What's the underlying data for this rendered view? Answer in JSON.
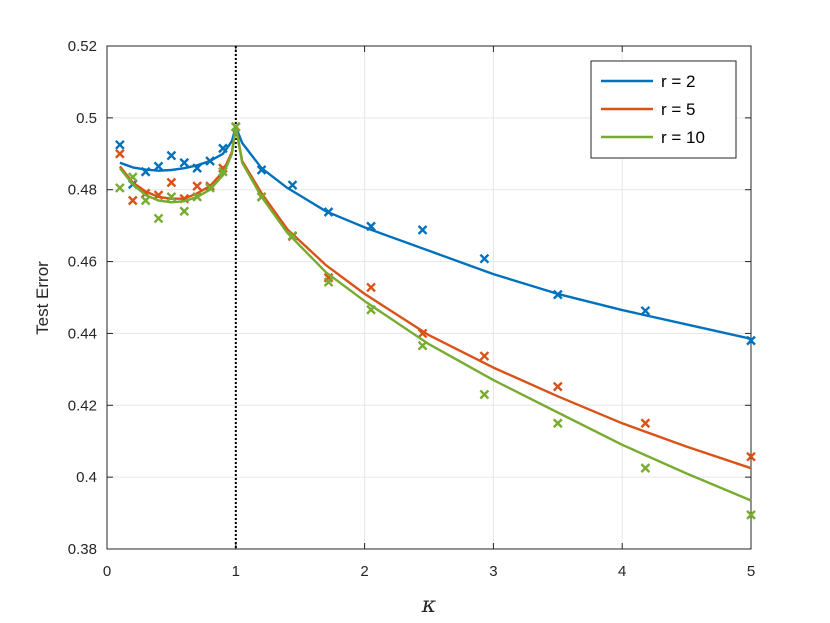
{
  "chart_data": {
    "type": "line",
    "title": "",
    "xlabel": "κ",
    "ylabel": "Test Error",
    "xlim": [
      0,
      5
    ],
    "ylim": [
      0.38,
      0.52
    ],
    "xticks": [
      0,
      1,
      2,
      3,
      4,
      5
    ],
    "xtick_labels": [
      "0",
      "1",
      "2",
      "3",
      "4",
      "5"
    ],
    "yticks": [
      0.38,
      0.4,
      0.42,
      0.44,
      0.46,
      0.48,
      0.5,
      0.52
    ],
    "ytick_labels": [
      "0.38",
      "0.4",
      "0.42",
      "0.44",
      "0.46",
      "0.48",
      "0.5",
      "0.52"
    ],
    "grid": true,
    "legend_position": "top-right",
    "vertical_reference_line_x": 1,
    "series": [
      {
        "name": "r = 2",
        "color": "#0072BD",
        "curve": [
          [
            0.1,
            0.4875
          ],
          [
            0.2,
            0.4862
          ],
          [
            0.3,
            0.4856
          ],
          [
            0.4,
            0.4853
          ],
          [
            0.5,
            0.4855
          ],
          [
            0.6,
            0.486
          ],
          [
            0.7,
            0.4868
          ],
          [
            0.8,
            0.488
          ],
          [
            0.9,
            0.49
          ],
          [
            0.97,
            0.4935
          ],
          [
            1.0,
            0.4975
          ],
          [
            1.05,
            0.493
          ],
          [
            1.2,
            0.486
          ],
          [
            1.4,
            0.4805
          ],
          [
            1.7,
            0.474
          ],
          [
            2.0,
            0.4695
          ],
          [
            2.5,
            0.463
          ],
          [
            3.0,
            0.4565
          ],
          [
            3.5,
            0.451
          ],
          [
            4.0,
            0.4465
          ],
          [
            4.5,
            0.4425
          ],
          [
            5.0,
            0.4385
          ]
        ],
        "markers": [
          [
            0.1,
            0.4925
          ],
          [
            0.2,
            0.4815
          ],
          [
            0.3,
            0.485
          ],
          [
            0.4,
            0.4865
          ],
          [
            0.5,
            0.4895
          ],
          [
            0.6,
            0.4875
          ],
          [
            0.7,
            0.486
          ],
          [
            0.8,
            0.488
          ],
          [
            0.9,
            0.4915
          ],
          [
            1.0,
            0.4975
          ],
          [
            1.2,
            0.4855
          ],
          [
            1.44,
            0.4813
          ],
          [
            1.72,
            0.4738
          ],
          [
            2.05,
            0.4698
          ],
          [
            2.45,
            0.4688
          ],
          [
            2.93,
            0.4608
          ],
          [
            3.5,
            0.4508
          ],
          [
            4.18,
            0.4463
          ],
          [
            5.0,
            0.438
          ]
        ]
      },
      {
        "name": "r = 5",
        "color": "#D95319",
        "curve": [
          [
            0.1,
            0.4865
          ],
          [
            0.2,
            0.482
          ],
          [
            0.3,
            0.4795
          ],
          [
            0.4,
            0.478
          ],
          [
            0.5,
            0.4775
          ],
          [
            0.6,
            0.4775
          ],
          [
            0.7,
            0.479
          ],
          [
            0.8,
            0.481
          ],
          [
            0.9,
            0.485
          ],
          [
            0.97,
            0.4905
          ],
          [
            1.0,
            0.4975
          ],
          [
            1.05,
            0.488
          ],
          [
            1.2,
            0.479
          ],
          [
            1.4,
            0.469
          ],
          [
            1.7,
            0.459
          ],
          [
            2.0,
            0.451
          ],
          [
            2.5,
            0.4395
          ],
          [
            3.0,
            0.4305
          ],
          [
            3.5,
            0.4225
          ],
          [
            4.0,
            0.415
          ],
          [
            4.5,
            0.4085
          ],
          [
            5.0,
            0.4025
          ]
        ],
        "markers": [
          [
            0.1,
            0.49
          ],
          [
            0.2,
            0.477
          ],
          [
            0.3,
            0.479
          ],
          [
            0.4,
            0.4785
          ],
          [
            0.5,
            0.482
          ],
          [
            0.6,
            0.4775
          ],
          [
            0.7,
            0.481
          ],
          [
            0.8,
            0.481
          ],
          [
            0.9,
            0.486
          ],
          [
            1.0,
            0.4975
          ],
          [
            1.2,
            0.478
          ],
          [
            1.44,
            0.467
          ],
          [
            1.72,
            0.4555
          ],
          [
            2.05,
            0.4528
          ],
          [
            2.45,
            0.44
          ],
          [
            2.93,
            0.4337
          ],
          [
            3.5,
            0.4252
          ],
          [
            4.18,
            0.415
          ],
          [
            5.0,
            0.4057
          ]
        ]
      },
      {
        "name": "r = 10",
        "color": "#77AC30",
        "curve": [
          [
            0.1,
            0.486
          ],
          [
            0.2,
            0.4815
          ],
          [
            0.3,
            0.4785
          ],
          [
            0.4,
            0.477
          ],
          [
            0.5,
            0.4765
          ],
          [
            0.6,
            0.4768
          ],
          [
            0.7,
            0.478
          ],
          [
            0.8,
            0.48
          ],
          [
            0.9,
            0.484
          ],
          [
            0.97,
            0.49
          ],
          [
            1.0,
            0.4975
          ],
          [
            1.05,
            0.4875
          ],
          [
            1.2,
            0.478
          ],
          [
            1.4,
            0.468
          ],
          [
            1.7,
            0.457
          ],
          [
            2.0,
            0.449
          ],
          [
            2.5,
            0.437
          ],
          [
            3.0,
            0.427
          ],
          [
            3.5,
            0.418
          ],
          [
            4.0,
            0.409
          ],
          [
            4.5,
            0.401
          ],
          [
            5.0,
            0.3935
          ]
        ],
        "markers": [
          [
            0.1,
            0.4805
          ],
          [
            0.2,
            0.4835
          ],
          [
            0.3,
            0.477
          ],
          [
            0.4,
            0.472
          ],
          [
            0.5,
            0.478
          ],
          [
            0.6,
            0.474
          ],
          [
            0.7,
            0.478
          ],
          [
            0.8,
            0.4805
          ],
          [
            0.9,
            0.485
          ],
          [
            1.0,
            0.4975
          ],
          [
            1.2,
            0.478
          ],
          [
            1.44,
            0.4672
          ],
          [
            1.72,
            0.4543
          ],
          [
            2.05,
            0.4466
          ],
          [
            2.45,
            0.4366
          ],
          [
            2.93,
            0.423
          ],
          [
            3.5,
            0.415
          ],
          [
            4.18,
            0.4025
          ],
          [
            5.0,
            0.3895
          ]
        ]
      }
    ]
  }
}
